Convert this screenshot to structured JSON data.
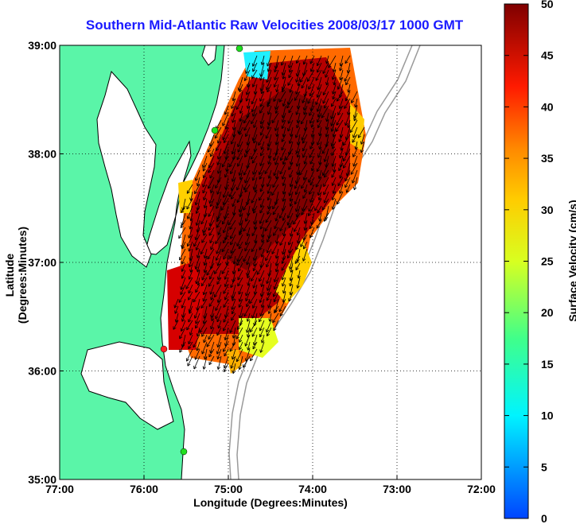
{
  "title": "Southern Mid-Atlantic Raw Velocities 2008/03/17 1000 GMT",
  "colorbar": {
    "label": "Surface Velocity (cm/s)",
    "min": 0,
    "max": 50,
    "ticks": [
      "0",
      "5",
      "10",
      "15",
      "20",
      "25",
      "30",
      "35",
      "40",
      "45",
      "50"
    ]
  },
  "chart_data": {
    "type": "heatmap",
    "title": "Southern Mid-Atlantic Raw Velocities 2008/03/17 1000 GMT",
    "xlabel": "Longitude (Degrees:Minutes)",
    "ylabel": "Latitude (Degrees:Minutes)",
    "x_ticks": [
      "77:00",
      "76:00",
      "75:00",
      "74:00",
      "73:00",
      "72:00"
    ],
    "y_ticks": [
      "39:00",
      "38:00",
      "37:00",
      "36:00",
      "35:00"
    ],
    "xlim": [
      -77,
      -72
    ],
    "ylim": [
      35,
      39
    ],
    "grid": true,
    "colorbar_label": "Surface Velocity (cm/s)",
    "clim": [
      0,
      50
    ],
    "colors": {
      "land": "#5af5a8",
      "water": "#ffffff",
      "bathymetry": "#9a9a9a"
    }
  }
}
